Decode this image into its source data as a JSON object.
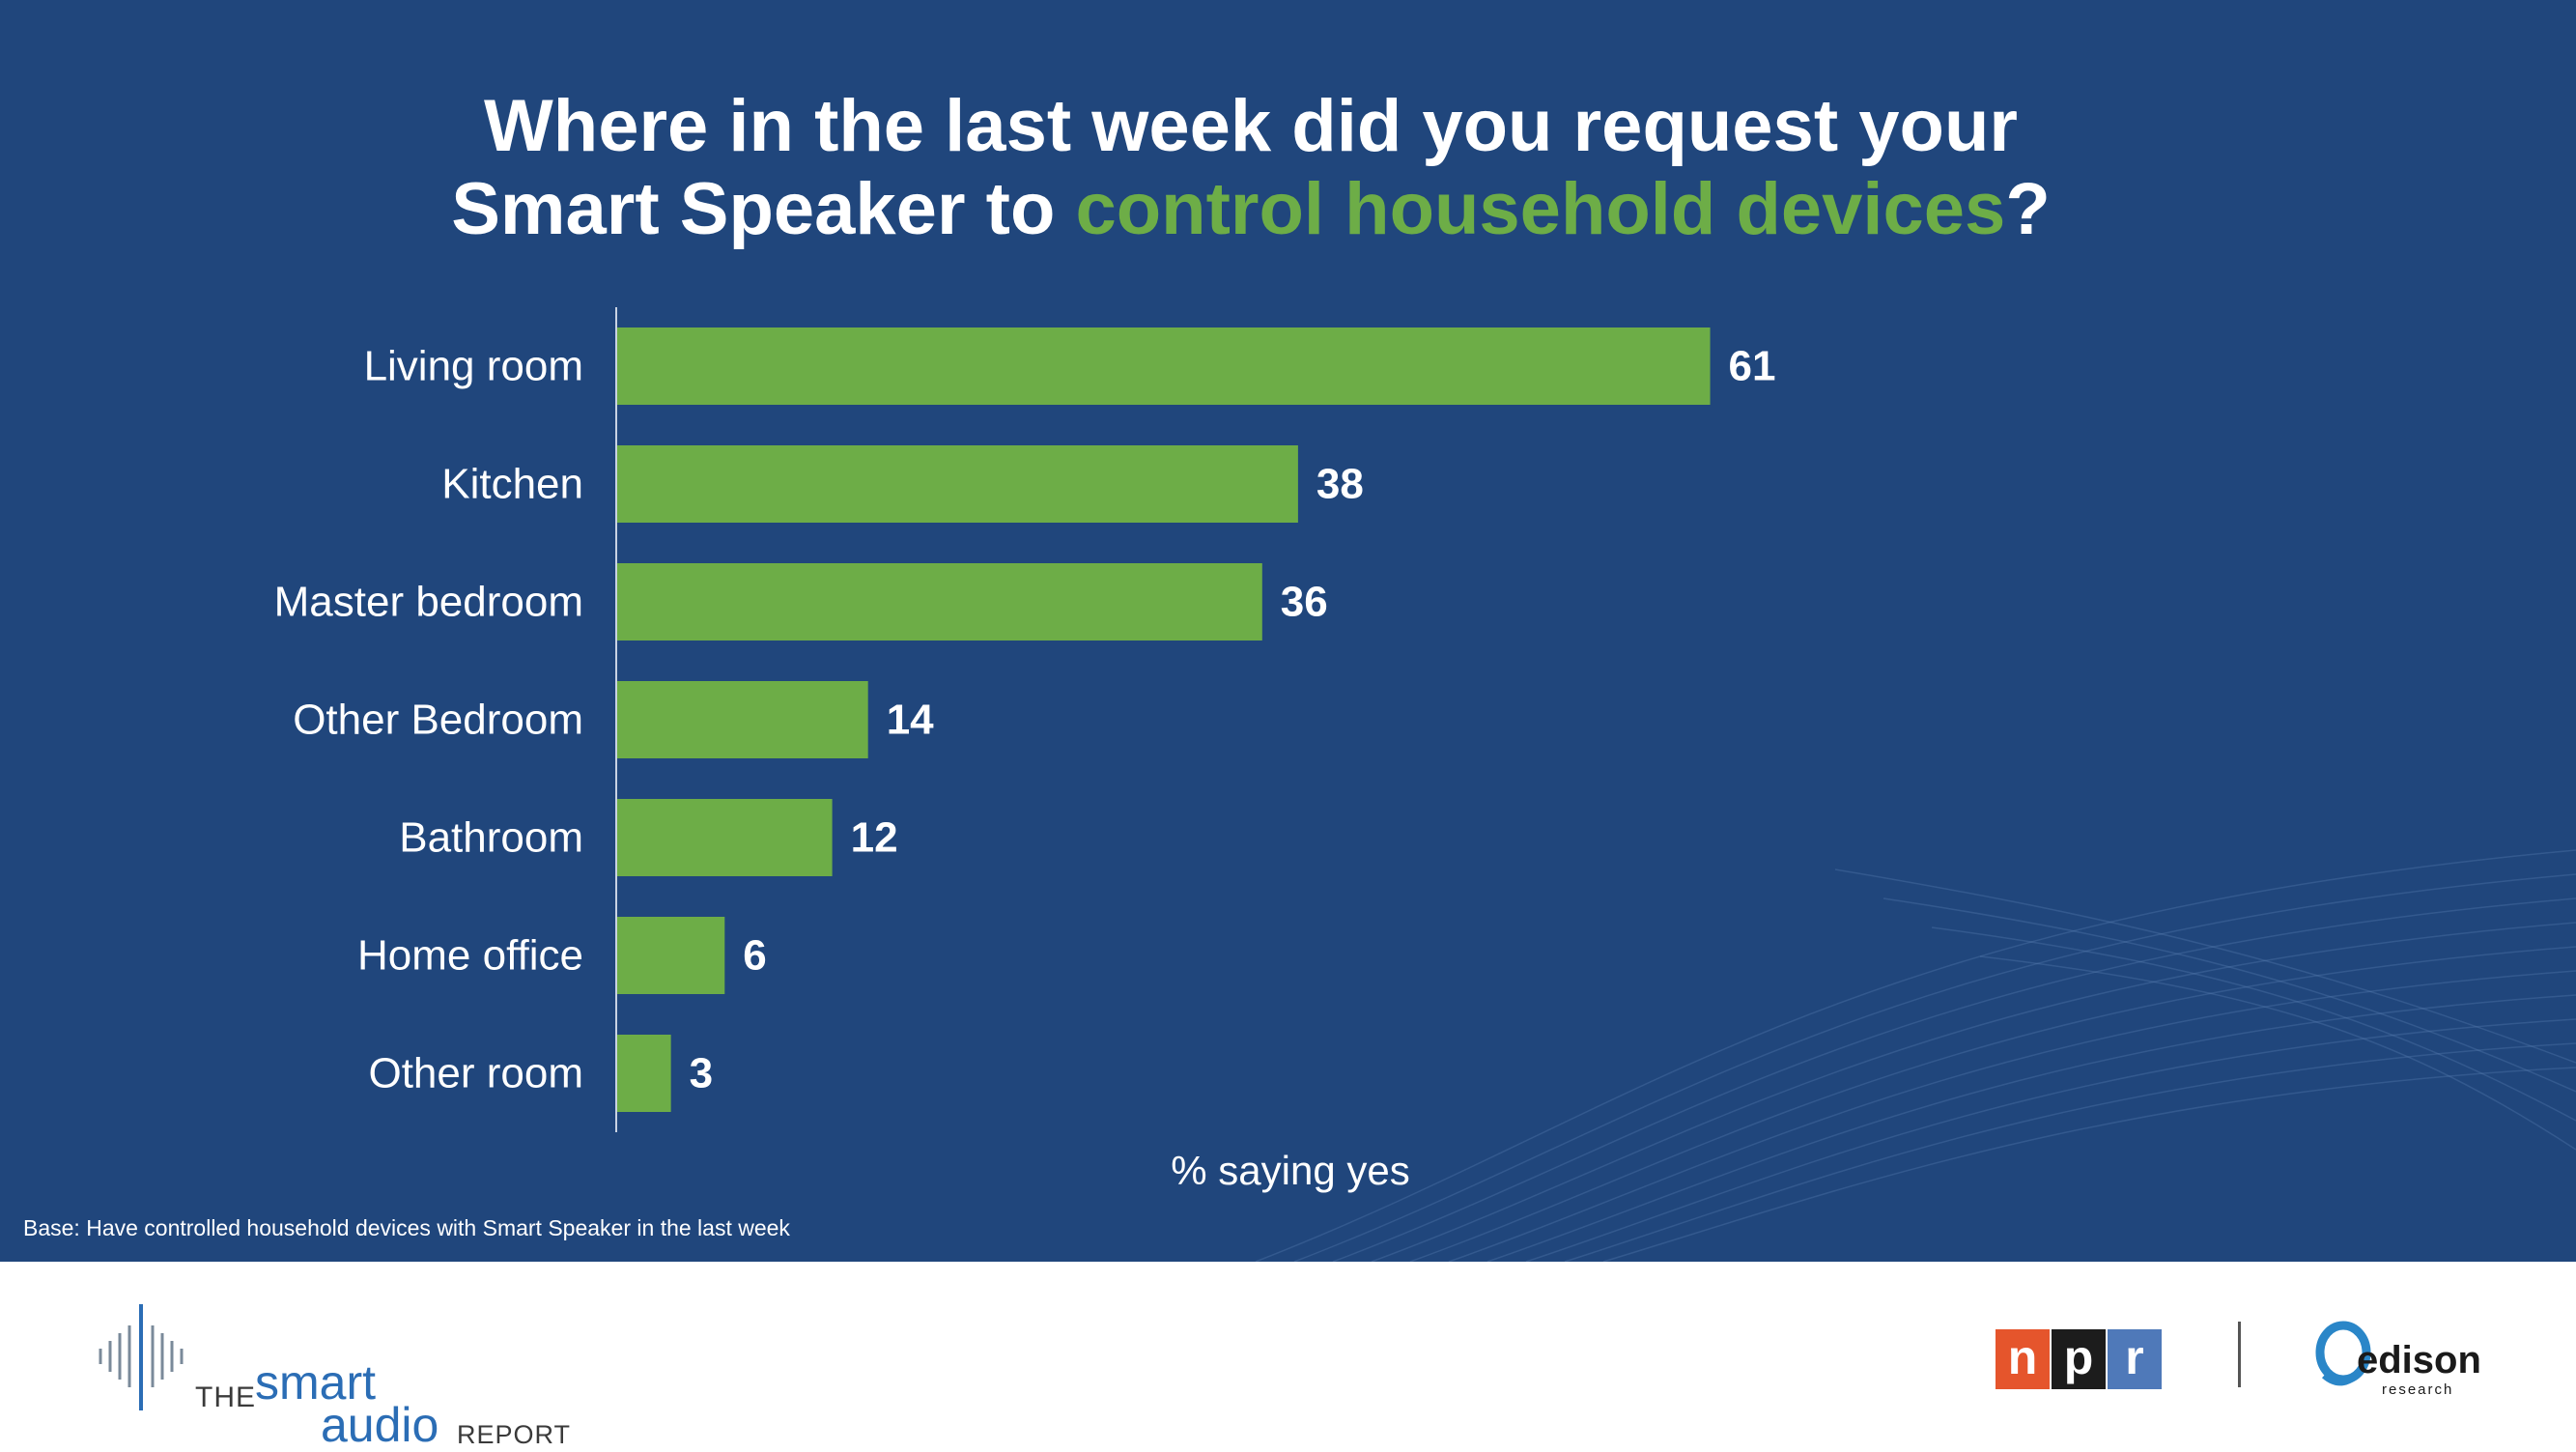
{
  "title": {
    "line1": "Where in the last week did you request your",
    "line2_plain": "Smart Speaker to ",
    "line2_highlight": "control household devices",
    "line2_end": "?"
  },
  "chart_data": {
    "type": "bar",
    "orientation": "horizontal",
    "categories": [
      "Living room",
      "Kitchen",
      "Master bedroom",
      "Other Bedroom",
      "Bathroom",
      "Home office",
      "Other room"
    ],
    "values": [
      61,
      38,
      36,
      14,
      12,
      6,
      3
    ],
    "data_labels": [
      "61",
      "38",
      "36",
      "14",
      "12",
      "6",
      "3"
    ],
    "xlabel": "% saying yes",
    "ylabel": "",
    "xlim": [
      0,
      100
    ],
    "bar_color": "#6dad47",
    "grid": false
  },
  "base_note": "Base: Have controlled household devices with Smart Speaker in the last week",
  "footer": {
    "report_logo": {
      "the": "THE",
      "smart": "smart",
      "audio": "audio",
      "report": "REPORT"
    },
    "npr_logo": [
      "n",
      "p",
      "r"
    ],
    "edison_logo": {
      "name": "edison",
      "sub": "research"
    }
  },
  "colors": {
    "background": "#20467c",
    "accent": "#6dad47",
    "text": "#ffffff",
    "npr_n": "#e5552c",
    "npr_p": "#1c1c1c",
    "npr_r": "#4f79b9"
  }
}
